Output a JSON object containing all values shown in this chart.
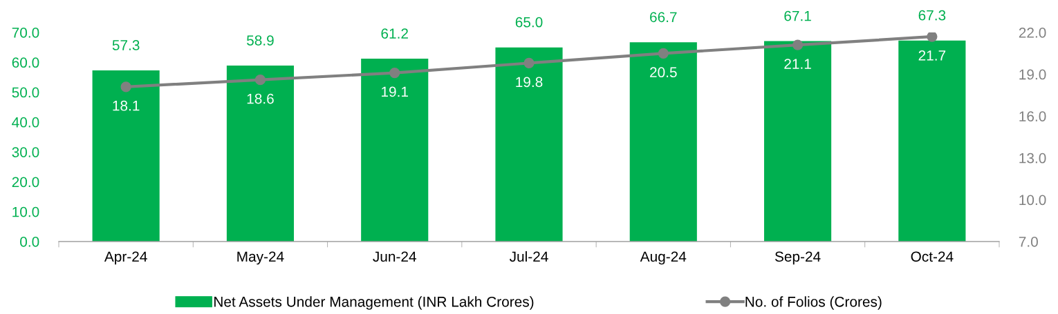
{
  "chart_data": {
    "type": "bar",
    "categories": [
      "Apr-24",
      "May-24",
      "Jun-24",
      "Jul-24",
      "Aug-24",
      "Sep-24",
      "Oct-24"
    ],
    "series": [
      {
        "name": "Net Assets Under Management (INR Lakh Crores)",
        "color": "#00b050",
        "values": [
          57.3,
          58.9,
          61.2,
          65.0,
          66.7,
          67.1,
          67.3
        ],
        "value_labels": [
          "57.3",
          "58.9",
          "61.2",
          "65.0",
          "66.7",
          "67.1",
          "67.3"
        ]
      },
      {
        "name": "No. of Folios (Crores)",
        "type": "line",
        "axis": "y2",
        "color": "#808080",
        "marker": "circle",
        "values": [
          18.1,
          18.6,
          19.1,
          19.8,
          20.5,
          21.1,
          21.7
        ],
        "value_labels": [
          "18.1",
          "18.6",
          "19.1",
          "19.8",
          "20.5",
          "21.1",
          "21.7"
        ]
      }
    ],
    "ylim": [
      0,
      70
    ],
    "yticks": [
      {
        "value": 0,
        "label": "0.0"
      },
      {
        "value": 10,
        "label": "10.0"
      },
      {
        "value": 20,
        "label": "20.0"
      },
      {
        "value": 30,
        "label": "30.0"
      },
      {
        "value": 40,
        "label": "40.0"
      },
      {
        "value": 50,
        "label": "50.0"
      },
      {
        "value": 60,
        "label": "60.0"
      },
      {
        "value": 70,
        "label": "70.0"
      }
    ],
    "y2lim": [
      7,
      22
    ],
    "y2ticks": [
      {
        "value": 7,
        "label": "7.0"
      },
      {
        "value": 10,
        "label": "10.0"
      },
      {
        "value": 13,
        "label": "13.0"
      },
      {
        "value": 16,
        "label": "16.0"
      },
      {
        "value": 19,
        "label": "19.0"
      },
      {
        "value": 22,
        "label": "22.0"
      }
    ],
    "grid": false,
    "legend": "bottom"
  }
}
